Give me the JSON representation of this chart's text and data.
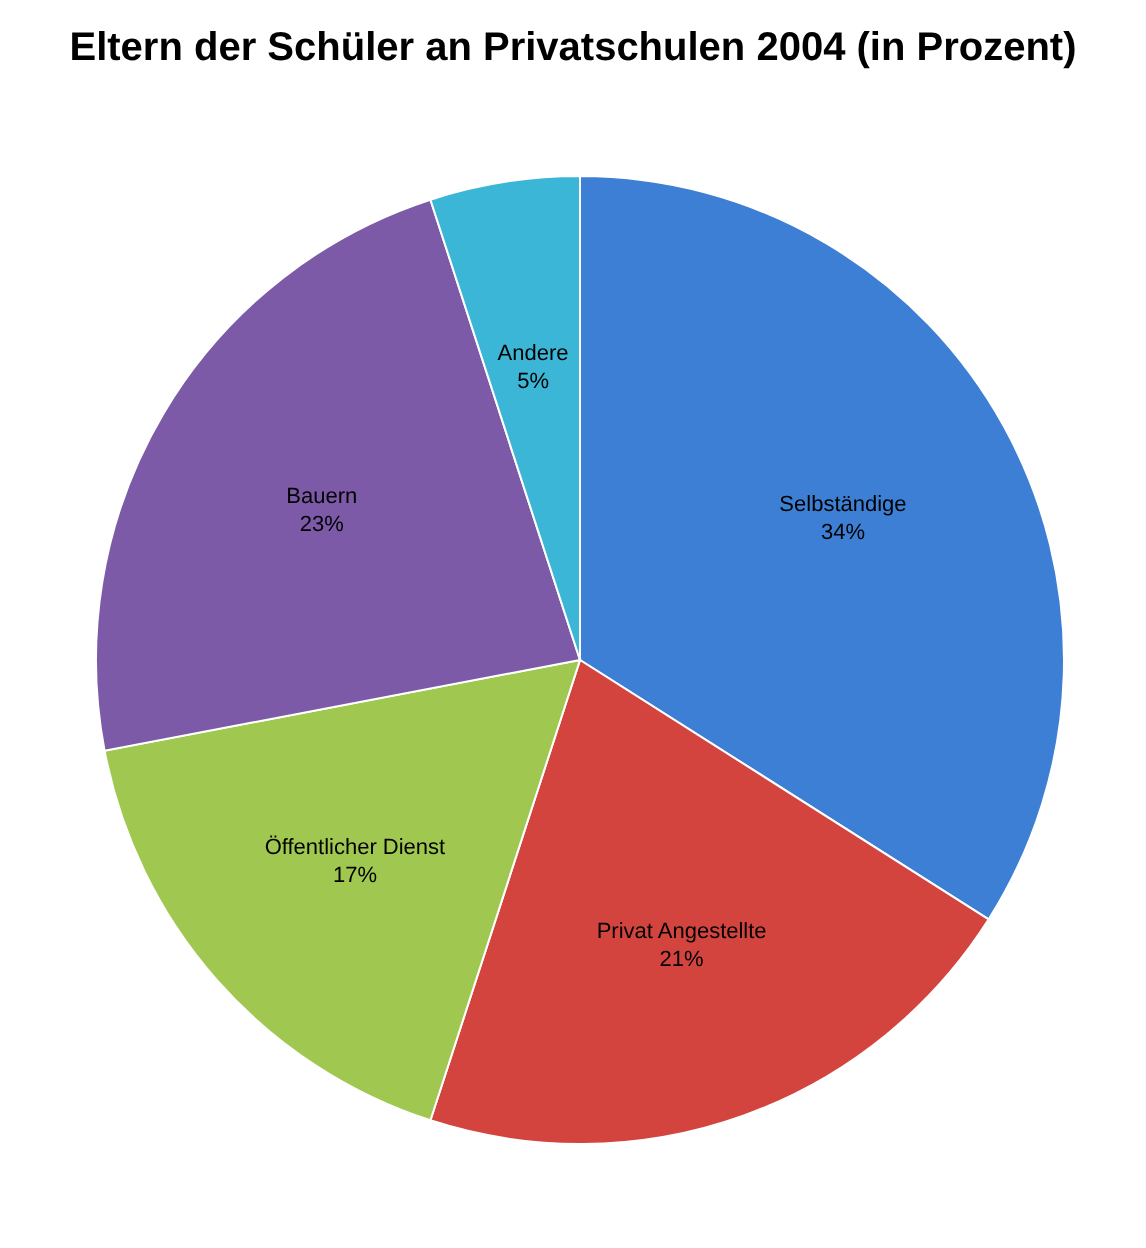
{
  "chart_data": {
    "type": "pie",
    "title": "Eltern der Schüler an Privatschulen 2004 (in Prozent)",
    "categories": [
      "Selbständige",
      "Privat Angestellte",
      "Öffentlicher Dienst",
      "Bauern",
      "Andere"
    ],
    "values": [
      34,
      21,
      17,
      23,
      5
    ],
    "colors": [
      "#3d7fd4",
      "#d4443f",
      "#a0c850",
      "#7d5aa8",
      "#3cb6d6"
    ],
    "value_labels": [
      "34%",
      "21%",
      "17%",
      "23%",
      "5%"
    ]
  }
}
